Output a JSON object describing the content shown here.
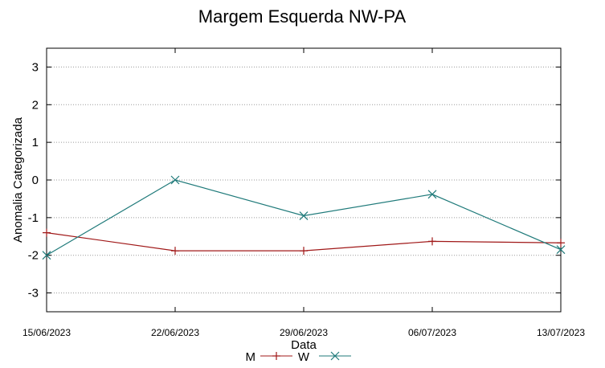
{
  "chart_data": {
    "type": "line",
    "title": "Margem Esquerda NW-PA",
    "xlabel": "Data",
    "ylabel": "Anomalia Categorizada",
    "x": [
      "15/06/2023",
      "22/06/2023",
      "29/06/2023",
      "06/07/2023",
      "13/07/2023"
    ],
    "y_ticks": [
      "3",
      "2",
      "1",
      "0",
      "-1",
      "-2",
      "-3"
    ],
    "ylim": [
      -3.5,
      3.5
    ],
    "grid": true,
    "legend_position": "bottom",
    "series": [
      {
        "name": "M",
        "color": "#a01818",
        "marker": "plus",
        "values": [
          -1.4,
          -1.88,
          -1.88,
          -1.63,
          -1.67
        ]
      },
      {
        "name": "W",
        "color": "#1f7a7a",
        "marker": "cross",
        "values": [
          -2.0,
          0.0,
          -0.95,
          -0.38,
          -1.85
        ]
      }
    ]
  }
}
